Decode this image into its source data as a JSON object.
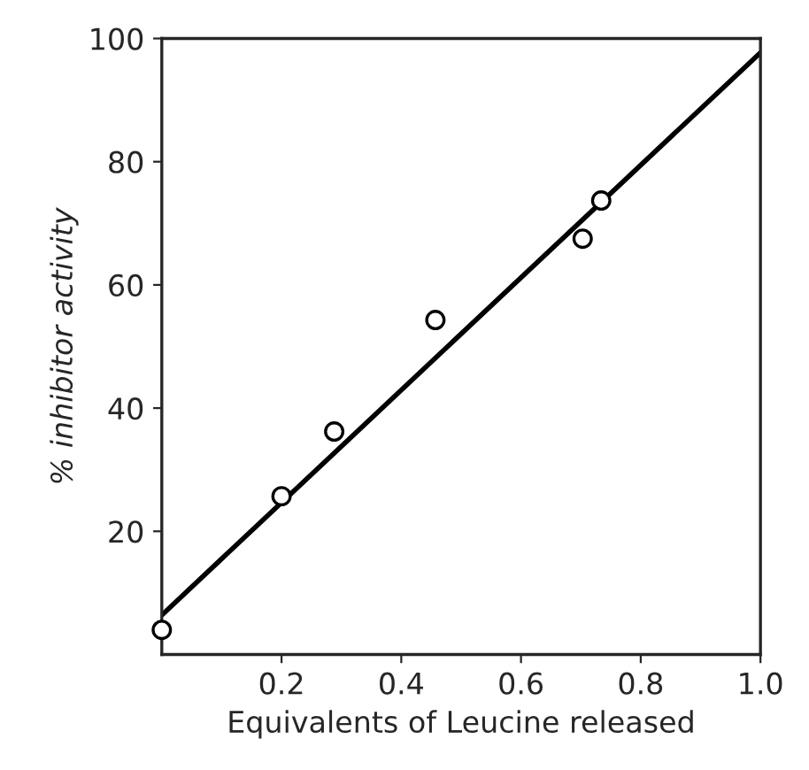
{
  "chart_data": {
    "type": "scatter",
    "xlabel": "Equivalents of Leucine released",
    "ylabel": "% inhibitor activity",
    "xlim": [
      0,
      1.0
    ],
    "ylim": [
      0,
      100
    ],
    "xticks": [
      0.2,
      0.4,
      0.6,
      0.8,
      {
        "value": 1.0,
        "label": "1.0"
      }
    ],
    "yticks": [
      20,
      40,
      60,
      80,
      100
    ],
    "grid": false,
    "legend": false,
    "series": [
      {
        "marker": "circle",
        "color": "#000000",
        "x": [
          0.0,
          0.2,
          0.288,
          0.457,
          0.703,
          0.734
        ],
        "values": [
          4,
          25.7,
          36.2,
          54.3,
          67.5,
          73.7
        ]
      },
      {
        "type": "line",
        "marker": "none",
        "color": "#000000",
        "x": [
          0.0,
          1.0
        ],
        "values": [
          6.4,
          97.7
        ]
      }
    ]
  }
}
